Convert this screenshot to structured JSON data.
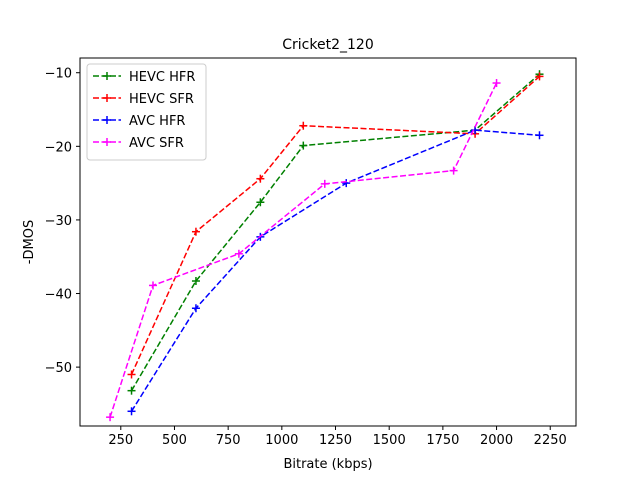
{
  "chart_data": {
    "type": "line",
    "title": "Cricket2_120",
    "xlabel": "Bitrate (kbps)",
    "ylabel": "-DMOS",
    "xlim": [
      60,
      2370
    ],
    "ylim": [
      -58,
      -8
    ],
    "xticks": [
      250,
      500,
      750,
      1000,
      1250,
      1500,
      1750,
      2000,
      2250
    ],
    "yticks": [
      -50,
      -40,
      -30,
      -20,
      -10
    ],
    "grid": false,
    "legend_position": "top-left",
    "series": [
      {
        "name": "HEVC HFR",
        "color": "#008000",
        "x": [
          300,
          600,
          900,
          1100,
          1900,
          2200
        ],
        "y": [
          -53.2,
          -38.3,
          -27.6,
          -19.9,
          -17.8,
          -10.2
        ]
      },
      {
        "name": "HEVC SFR",
        "color": "#ff0000",
        "x": [
          300,
          600,
          900,
          1100,
          1900,
          2200
        ],
        "y": [
          -51.0,
          -31.6,
          -24.4,
          -17.2,
          -18.3,
          -10.5
        ]
      },
      {
        "name": "AVC HFR",
        "color": "#0000ff",
        "x": [
          300,
          600,
          900,
          1300,
          1900,
          2200
        ],
        "y": [
          -56.0,
          -42.0,
          -32.3,
          -25.0,
          -17.8,
          -18.5
        ]
      },
      {
        "name": "AVC SFR",
        "color": "#ff00ff",
        "x": [
          200,
          400,
          800,
          1200,
          1800,
          2000
        ],
        "y": [
          -56.8,
          -38.9,
          -34.6,
          -25.1,
          -23.3,
          -11.4
        ]
      }
    ]
  }
}
